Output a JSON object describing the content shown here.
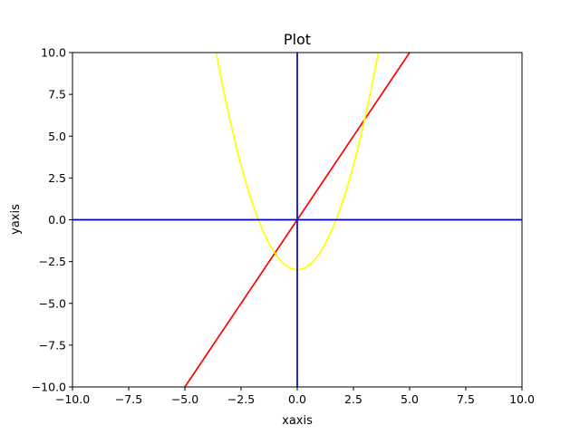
{
  "chart_data": {
    "type": "line",
    "title": "Plot",
    "xlabel": "xaxis",
    "ylabel": "yaxis",
    "xlim": [
      -10,
      10
    ],
    "ylim": [
      -10,
      10
    ],
    "grid": false,
    "x_ticks": [
      -10,
      -7.5,
      -5,
      -2.5,
      0,
      2.5,
      5,
      7.5,
      10
    ],
    "y_ticks": [
      -10,
      -7.5,
      -5,
      -2.5,
      0,
      2.5,
      5,
      7.5,
      10
    ],
    "x_tick_labels": [
      "−10.0",
      "−7.5",
      "−5.0",
      "−2.5",
      "0.0",
      "2.5",
      "5.0",
      "7.5",
      "10.0"
    ],
    "y_tick_labels": [
      "−10.0",
      "−7.5",
      "−5.0",
      "−2.5",
      "0.0",
      "2.5",
      "5.0",
      "7.5",
      "10.0"
    ],
    "series": [
      {
        "color": "#ff0000",
        "x": [
          -5,
          5
        ],
        "y": [
          -10,
          10
        ]
      },
      {
        "color": "#ffff00",
        "x": [
          -3.6,
          -3.3,
          -3.0,
          -2.7,
          -2.4,
          -2.1,
          -1.8,
          -1.5,
          -1.2,
          -0.9,
          -0.6,
          -0.3,
          0,
          0.3,
          0.6,
          0.9,
          1.2,
          1.5,
          1.8,
          2.1,
          2.4,
          2.7,
          3.0,
          3.3,
          3.6
        ],
        "y": [
          9.96,
          7.89,
          6.0,
          4.29,
          2.76,
          1.41,
          0.24,
          -0.75,
          -1.56,
          -2.19,
          -2.64,
          -2.91,
          -3.0,
          -2.91,
          -2.64,
          -2.19,
          -1.56,
          -0.75,
          0.24,
          1.41,
          2.76,
          4.29,
          6.0,
          7.89,
          9.96
        ]
      },
      {
        "color": "#0000cc",
        "x": [
          -10,
          10
        ],
        "y": [
          0,
          0
        ]
      },
      {
        "color": "#0000cc",
        "x": [
          0,
          0
        ],
        "y": [
          -10,
          10
        ]
      }
    ]
  }
}
